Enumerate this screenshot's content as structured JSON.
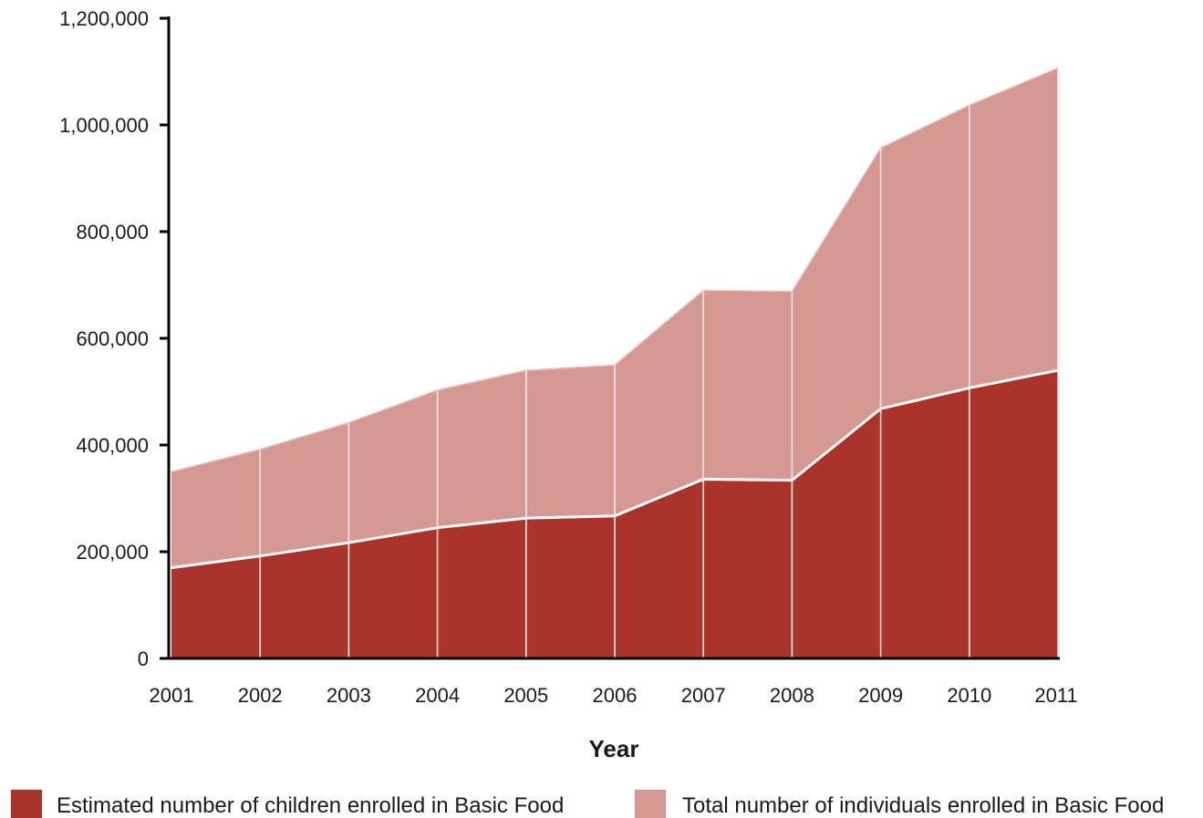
{
  "chart_data": {
    "type": "area",
    "title": "",
    "xlabel": "Year",
    "ylabel": "",
    "x": [
      "2001",
      "2002",
      "2003",
      "2004",
      "2005",
      "2006",
      "2007",
      "2008",
      "2009",
      "2010",
      "2011"
    ],
    "ylim": [
      0,
      1200000
    ],
    "yticks": [
      0,
      200000,
      400000,
      600000,
      800000,
      1000000,
      1200000
    ],
    "ytick_labels": [
      "0",
      "200,000",
      "400,000",
      "600,000",
      "800,000",
      "1,000,000",
      "1,200,000"
    ],
    "grid": false,
    "legend_position": "bottom",
    "series": [
      {
        "name": "Estimated number of children enrolled in Basic Food",
        "color": "#ab342a",
        "values": [
          170000,
          192000,
          217000,
          245000,
          263000,
          267000,
          336000,
          334000,
          468000,
          507000,
          540000
        ]
      },
      {
        "name": "Total number of individuals enrolled in Basic Food",
        "color": "#d69893",
        "values": [
          350000,
          392000,
          442000,
          503000,
          540000,
          550000,
          690000,
          688000,
          957000,
          1037000,
          1107000
        ]
      }
    ]
  }
}
